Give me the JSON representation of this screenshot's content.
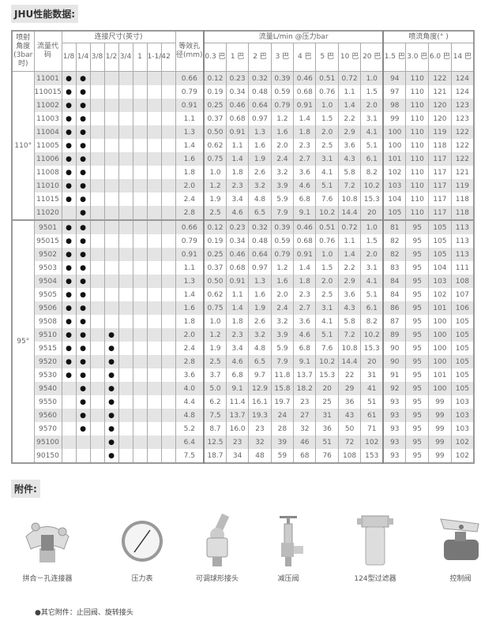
{
  "title": "JHU性能数据:",
  "headers": {
    "angle": "喷射角度(3bar时)",
    "code": "流量代码",
    "connection": "连接尺寸(英寸)",
    "conn_sizes": [
      "1/8",
      "1/4",
      "3/8",
      "1/2",
      "3/4",
      "1",
      "1-1/4",
      "2"
    ],
    "orifice": "等效孔径(mm)",
    "flow": "流量L/min @压力bar",
    "flow_pressures": [
      "0.3 巴",
      "1 巴",
      "2 巴",
      "3 巴",
      "4 巴",
      "5 巴",
      "10 巴",
      "20 巴"
    ],
    "spray": "喷流角度(° )",
    "spray_pressures": [
      "1.5 巴",
      "3.0 巴",
      "6.0 巴",
      "14 巴"
    ]
  },
  "groups": [
    {
      "angle": "110°",
      "rows": [
        {
          "code": "11001",
          "conn": [
            0,
            1
          ],
          "orifice": "0.66",
          "flow": [
            "0.12",
            "0.23",
            "0.32",
            "0.39",
            "0.46",
            "0.51",
            "0.72",
            "1.0"
          ],
          "spray": [
            "94",
            "110",
            "122",
            "124"
          ]
        },
        {
          "code": "110015",
          "conn": [
            0,
            1
          ],
          "orifice": "0.79",
          "flow": [
            "0.19",
            "0.34",
            "0.48",
            "0.59",
            "0.68",
            "0.76",
            "1.1",
            "1.5"
          ],
          "spray": [
            "97",
            "110",
            "121",
            "124"
          ]
        },
        {
          "code": "11002",
          "conn": [
            0,
            1
          ],
          "orifice": "0.91",
          "flow": [
            "0.25",
            "0.46",
            "0.64",
            "0.79",
            "0.91",
            "1.0",
            "1.4",
            "2.0"
          ],
          "spray": [
            "98",
            "110",
            "120",
            "123"
          ]
        },
        {
          "code": "11003",
          "conn": [
            0,
            1
          ],
          "orifice": "1.1",
          "flow": [
            "0.37",
            "0.68",
            "0.97",
            "1.2",
            "1.4",
            "1.5",
            "2.2",
            "3.1"
          ],
          "spray": [
            "99",
            "110",
            "120",
            "123"
          ]
        },
        {
          "code": "11004",
          "conn": [
            0,
            1
          ],
          "orifice": "1.3",
          "flow": [
            "0.50",
            "0.91",
            "1.3",
            "1.6",
            "1.8",
            "2.0",
            "2.9",
            "4.1"
          ],
          "spray": [
            "100",
            "110",
            "119",
            "122"
          ]
        },
        {
          "code": "11005",
          "conn": [
            0,
            1
          ],
          "orifice": "1.4",
          "flow": [
            "0.62",
            "1.1",
            "1.6",
            "2.0",
            "2.3",
            "2.5",
            "3.6",
            "5.1"
          ],
          "spray": [
            "100",
            "110",
            "118",
            "122"
          ]
        },
        {
          "code": "11006",
          "conn": [
            0,
            1
          ],
          "orifice": "1.6",
          "flow": [
            "0.75",
            "1.4",
            "1.9",
            "2.4",
            "2.7",
            "3.1",
            "4.3",
            "6.1"
          ],
          "spray": [
            "101",
            "110",
            "117",
            "122"
          ]
        },
        {
          "code": "11008",
          "conn": [
            0,
            1
          ],
          "orifice": "1.8",
          "flow": [
            "1.0",
            "1.8",
            "2.6",
            "3.2",
            "3.6",
            "4.1",
            "5.8",
            "8.2"
          ],
          "spray": [
            "102",
            "110",
            "117",
            "121"
          ]
        },
        {
          "code": "11010",
          "conn": [
            0,
            1
          ],
          "orifice": "2.0",
          "flow": [
            "1.2",
            "2.3",
            "3.2",
            "3.9",
            "4.6",
            "5.1",
            "7.2",
            "10.2"
          ],
          "spray": [
            "103",
            "110",
            "117",
            "119"
          ]
        },
        {
          "code": "11015",
          "conn": [
            0,
            1
          ],
          "orifice": "2.4",
          "flow": [
            "1.9",
            "3.4",
            "4.8",
            "5.9",
            "6.8",
            "7.6",
            "10.8",
            "15.3"
          ],
          "spray": [
            "104",
            "110",
            "117",
            "118"
          ]
        },
        {
          "code": "11020",
          "conn": [
            1
          ],
          "orifice": "2.8",
          "flow": [
            "2.5",
            "4.6",
            "6.5",
            "7.9",
            "9.1",
            "10.2",
            "14.4",
            "20"
          ],
          "spray": [
            "105",
            "110",
            "117",
            "118"
          ]
        }
      ]
    },
    {
      "angle": "95°",
      "rows": [
        {
          "code": "9501",
          "conn": [
            0,
            1
          ],
          "orifice": "0.66",
          "flow": [
            "0.12",
            "0.23",
            "0.32",
            "0.39",
            "0.46",
            "0.51",
            "0.72",
            "1.0"
          ],
          "spray": [
            "81",
            "95",
            "105",
            "113"
          ]
        },
        {
          "code": "95015",
          "conn": [
            0,
            1
          ],
          "orifice": "0.79",
          "flow": [
            "0.19",
            "0.34",
            "0.48",
            "0.59",
            "0.68",
            "0.76",
            "1.1",
            "1.5"
          ],
          "spray": [
            "82",
            "95",
            "105",
            "113"
          ]
        },
        {
          "code": "9502",
          "conn": [
            0,
            1
          ],
          "orifice": "0.91",
          "flow": [
            "0.25",
            "0.46",
            "0.64",
            "0.79",
            "0.91",
            "1.0",
            "1.4",
            "2.0"
          ],
          "spray": [
            "82",
            "95",
            "105",
            "113"
          ]
        },
        {
          "code": "9503",
          "conn": [
            0,
            1
          ],
          "orifice": "1.1",
          "flow": [
            "0.37",
            "0.68",
            "0.97",
            "1.2",
            "1.4",
            "1.5",
            "2.2",
            "3.1"
          ],
          "spray": [
            "83",
            "95",
            "104",
            "111"
          ]
        },
        {
          "code": "9504",
          "conn": [
            0,
            1
          ],
          "orifice": "1.3",
          "flow": [
            "0.50",
            "0.91",
            "1.3",
            "1.6",
            "1.8",
            "2.0",
            "2.9",
            "4.1"
          ],
          "spray": [
            "84",
            "95",
            "103",
            "108"
          ]
        },
        {
          "code": "9505",
          "conn": [
            0,
            1
          ],
          "orifice": "1.4",
          "flow": [
            "0.62",
            "1.1",
            "1.6",
            "2.0",
            "2.3",
            "2.5",
            "3.6",
            "5.1"
          ],
          "spray": [
            "84",
            "95",
            "102",
            "107"
          ]
        },
        {
          "code": "9506",
          "conn": [
            0,
            1
          ],
          "orifice": "1.6",
          "flow": [
            "0.75",
            "1.4",
            "1.9",
            "2.4",
            "2.7",
            "3.1",
            "4.3",
            "6.1"
          ],
          "spray": [
            "86",
            "95",
            "101",
            "106"
          ]
        },
        {
          "code": "9508",
          "conn": [
            0,
            1
          ],
          "orifice": "1.8",
          "flow": [
            "1.0",
            "1.8",
            "2.6",
            "3.2",
            "3.6",
            "4.1",
            "5.8",
            "8.2"
          ],
          "spray": [
            "87",
            "95",
            "100",
            "105"
          ]
        },
        {
          "code": "9510",
          "conn": [
            0,
            1,
            3
          ],
          "orifice": "2.0",
          "flow": [
            "1.2",
            "2.3",
            "3.2",
            "3.9",
            "4.6",
            "5.1",
            "7.2",
            "10.2"
          ],
          "spray": [
            "89",
            "95",
            "100",
            "105"
          ]
        },
        {
          "code": "9515",
          "conn": [
            0,
            1,
            3
          ],
          "orifice": "2.4",
          "flow": [
            "1.9",
            "3.4",
            "4.8",
            "5.9",
            "6.8",
            "7.6",
            "10.8",
            "15.3"
          ],
          "spray": [
            "90",
            "95",
            "100",
            "105"
          ]
        },
        {
          "code": "9520",
          "conn": [
            0,
            1,
            3
          ],
          "orifice": "2.8",
          "flow": [
            "2.5",
            "4.6",
            "6.5",
            "7.9",
            "9.1",
            "10.2",
            "14.4",
            "20"
          ],
          "spray": [
            "90",
            "95",
            "100",
            "105"
          ]
        },
        {
          "code": "9530",
          "conn": [
            0,
            1,
            3
          ],
          "orifice": "3.6",
          "flow": [
            "3.7",
            "6.8",
            "9.7",
            "11.8",
            "13.7",
            "15.3",
            "22",
            "31"
          ],
          "spray": [
            "91",
            "95",
            "101",
            "105"
          ]
        },
        {
          "code": "9540",
          "conn": [
            1,
            3
          ],
          "orifice": "4.0",
          "flow": [
            "5.0",
            "9.1",
            "12.9",
            "15.8",
            "18.2",
            "20",
            "29",
            "41"
          ],
          "spray": [
            "92",
            "95",
            "100",
            "105"
          ]
        },
        {
          "code": "9550",
          "conn": [
            1,
            3
          ],
          "orifice": "4.4",
          "flow": [
            "6.2",
            "11.4",
            "16.1",
            "19.7",
            "23",
            "25",
            "36",
            "51"
          ],
          "spray": [
            "93",
            "95",
            "99",
            "103"
          ]
        },
        {
          "code": "9560",
          "conn": [
            1,
            3
          ],
          "orifice": "4.8",
          "flow": [
            "7.5",
            "13.7",
            "19.3",
            "24",
            "27",
            "31",
            "43",
            "61"
          ],
          "spray": [
            "93",
            "95",
            "99",
            "103"
          ]
        },
        {
          "code": "9570",
          "conn": [
            1,
            3
          ],
          "orifice": "5.2",
          "flow": [
            "8.7",
            "16.0",
            "23",
            "28",
            "32",
            "36",
            "50",
            "71"
          ],
          "spray": [
            "93",
            "95",
            "99",
            "103"
          ]
        },
        {
          "code": "95100",
          "conn": [
            3
          ],
          "orifice": "6.4",
          "flow": [
            "12.5",
            "23",
            "32",
            "39",
            "46",
            "51",
            "72",
            "102"
          ],
          "spray": [
            "93",
            "95",
            "99",
            "102"
          ]
        },
        {
          "code": "90150",
          "conn": [
            3
          ],
          "orifice": "7.5",
          "flow": [
            "18.7",
            "34",
            "48",
            "59",
            "68",
            "76",
            "108",
            "153"
          ],
          "spray": [
            "93",
            "95",
            "99",
            "102"
          ]
        }
      ]
    }
  ],
  "dot": "●",
  "accessories_title": "附件:",
  "accessories": [
    {
      "label": "拼合－孔连接器",
      "icon": "split-eyelet-connector-icon"
    },
    {
      "label": "压力表",
      "icon": "pressure-gauge-icon"
    },
    {
      "label": "可调球形接头",
      "icon": "adjustable-ball-fitting-icon"
    },
    {
      "label": "减压阀",
      "icon": "pressure-relief-valve-icon"
    },
    {
      "label": "124型过滤器",
      "icon": "strainer-icon"
    },
    {
      "label": "控制阀",
      "icon": "control-valve-icon"
    }
  ],
  "note": "●其它附件：止回阀、旋转接头"
}
